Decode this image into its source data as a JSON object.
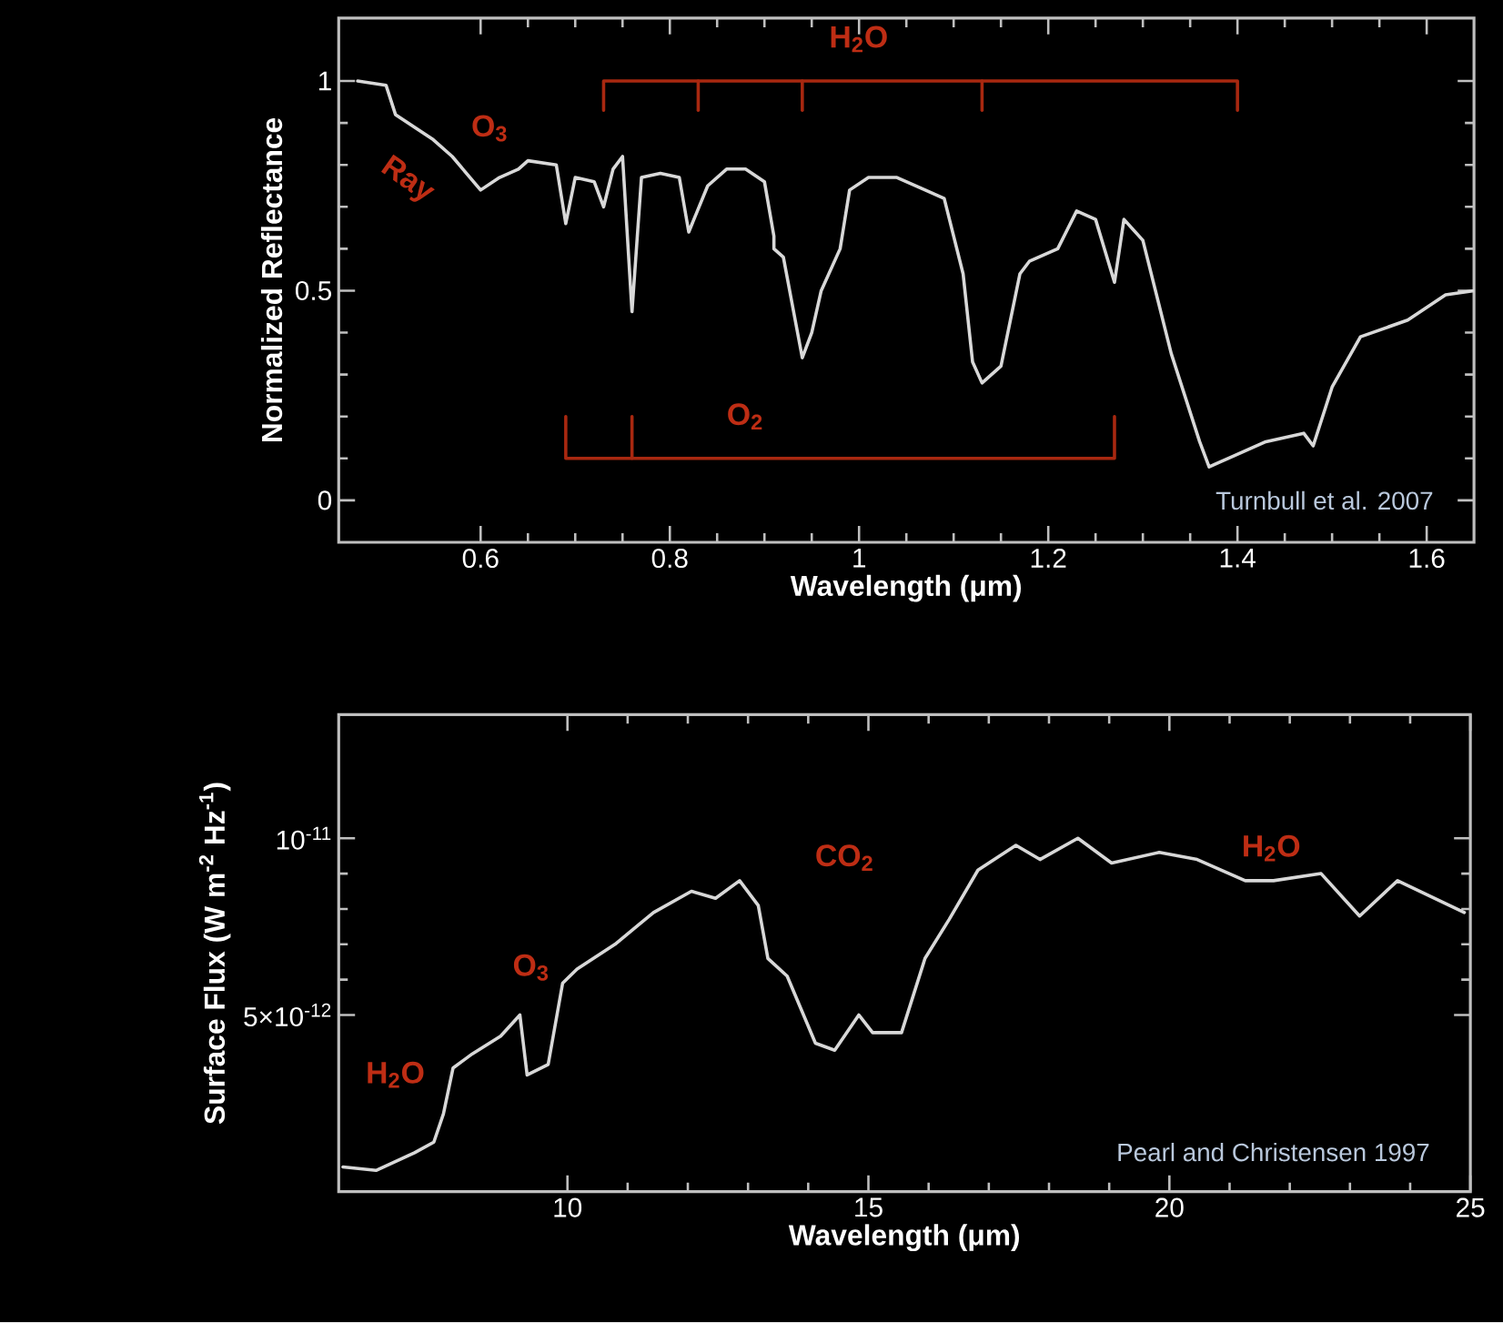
{
  "chart_data": [
    {
      "type": "line",
      "xlabel": "Wavelength (μm)",
      "ylabel": "Normalized Reflectance",
      "xlim": [
        0.45,
        1.65
      ],
      "ylim": [
        -0.1,
        1.15
      ],
      "xticks": [
        0.6,
        0.8,
        1,
        1.2,
        1.4,
        1.6
      ],
      "yticks": [
        0,
        0.5,
        1
      ],
      "marker": "none",
      "line_style": "solid",
      "series": [
        {
          "color": "#d8d8d8",
          "x": [
            0.47,
            0.5,
            0.51,
            0.55,
            0.57,
            0.6,
            0.62,
            0.64,
            0.65,
            0.68,
            0.69,
            0.7,
            0.72,
            0.73,
            0.74,
            0.75,
            0.76,
            0.77,
            0.79,
            0.81,
            0.82,
            0.84,
            0.86,
            0.88,
            0.9,
            0.91,
            0.91,
            0.92,
            0.94,
            0.95,
            0.96,
            0.98,
            0.99,
            1.01,
            1.04,
            1.07,
            1.09,
            1.11,
            1.12,
            1.13,
            1.15,
            1.17,
            1.18,
            1.21,
            1.23,
            1.25,
            1.27,
            1.28,
            1.3,
            1.33,
            1.36,
            1.37,
            1.39,
            1.43,
            1.47,
            1.48,
            1.5,
            1.53,
            1.58,
            1.62,
            1.65
          ],
          "values": [
            1.0,
            0.99,
            0.92,
            0.86,
            0.82,
            0.74,
            0.77,
            0.79,
            0.81,
            0.8,
            0.66,
            0.77,
            0.76,
            0.7,
            0.79,
            0.82,
            0.45,
            0.77,
            0.78,
            0.77,
            0.64,
            0.75,
            0.79,
            0.79,
            0.76,
            0.63,
            0.6,
            0.58,
            0.34,
            0.4,
            0.5,
            0.6,
            0.74,
            0.77,
            0.77,
            0.74,
            0.72,
            0.54,
            0.33,
            0.28,
            0.32,
            0.54,
            0.57,
            0.6,
            0.69,
            0.67,
            0.52,
            0.67,
            0.62,
            0.35,
            0.14,
            0.08,
            0.1,
            0.14,
            0.16,
            0.13,
            0.27,
            0.39,
            0.43,
            0.49,
            0.5
          ]
        },
        {
          "color": "#a82810",
          "x": [
            0.73,
            0.73,
            1.4,
            1.4
          ],
          "values": [
            0.93,
            1.0,
            1.0,
            0.93
          ]
        },
        {
          "color": "#a82810",
          "x": [
            0.83,
            0.83
          ],
          "values": [
            1.0,
            0.93
          ]
        },
        {
          "color": "#a82810",
          "x": [
            0.94,
            0.94
          ],
          "values": [
            1.0,
            0.93
          ]
        },
        {
          "color": "#a82810",
          "x": [
            1.13,
            1.13
          ],
          "values": [
            1.0,
            0.93
          ]
        },
        {
          "color": "#a82810",
          "x": [
            0.69,
            0.69,
            1.27,
            1.27
          ],
          "values": [
            0.2,
            0.1,
            0.1,
            0.2
          ]
        },
        {
          "color": "#a82810",
          "x": [
            0.76,
            0.76
          ],
          "values": [
            0.1,
            0.2
          ]
        }
      ],
      "annotations": [
        "Ray",
        "O$_{3}$",
        "H$_{2}$O",
        "O$_{2}$",
        "Turnbull et al. 2007"
      ]
    },
    {
      "type": "line",
      "xlabel": "Wavelength (μm)",
      "ylabel": "Surface Flux (W m$^{-2}$ Hz$^{-1}$)",
      "xlim": [
        6.2,
        25
      ],
      "ylim": [
        0,
        1.35e-11
      ],
      "xticks": [
        10,
        15,
        20,
        25
      ],
      "yticks": [
        {
          "value": 5e-12,
          "label": "5×10$^{-12}$"
        },
        {
          "value": 1e-11,
          "label": "10$^{-11}$"
        }
      ],
      "marker": "none",
      "line_style": "solid",
      "series": [
        {
          "color": "#d8d8d8",
          "x": [
            6.27,
            6.82,
            7.46,
            7.78,
            7.94,
            8.1,
            8.42,
            8.89,
            9.21,
            9.33,
            9.68,
            9.92,
            10.16,
            10.79,
            11.43,
            12.06,
            12.46,
            12.86,
            13.17,
            13.33,
            13.65,
            14.12,
            14.44,
            14.84,
            15.07,
            15.55,
            15.94,
            16.34,
            16.82,
            17.45,
            17.85,
            18.48,
            19.04,
            19.83,
            20.46,
            21.26,
            21.73,
            22.52,
            23.16,
            23.79,
            24.9
          ],
          "values": [
            7e-13,
            6e-13,
            1.1e-12,
            1.4e-12,
            2.2e-12,
            3.5e-12,
            3.9e-12,
            4.4e-12,
            5e-12,
            3.3e-12,
            3.6e-12,
            5.9e-12,
            6.3e-12,
            7e-12,
            7.9e-12,
            8.5e-12,
            8.3e-12,
            8.8e-12,
            8.1e-12,
            6.6e-12,
            6.1e-12,
            4.2e-12,
            4e-12,
            5e-12,
            4.5e-12,
            4.5e-12,
            6.6e-12,
            7.7e-12,
            9.1e-12,
            9.8e-12,
            9.4e-12,
            1e-11,
            9.3e-12,
            9.6e-12,
            9.4e-12,
            8.8e-12,
            8.8e-12,
            9e-12,
            7.8e-12,
            8.8e-12,
            7.9e-12
          ]
        }
      ],
      "annotations": [
        "H$_{2}$O",
        "O$_{3}$",
        "CO$_{2}$",
        "H$_{2}$O",
        "Pearl and Christensen 1997"
      ]
    }
  ]
}
